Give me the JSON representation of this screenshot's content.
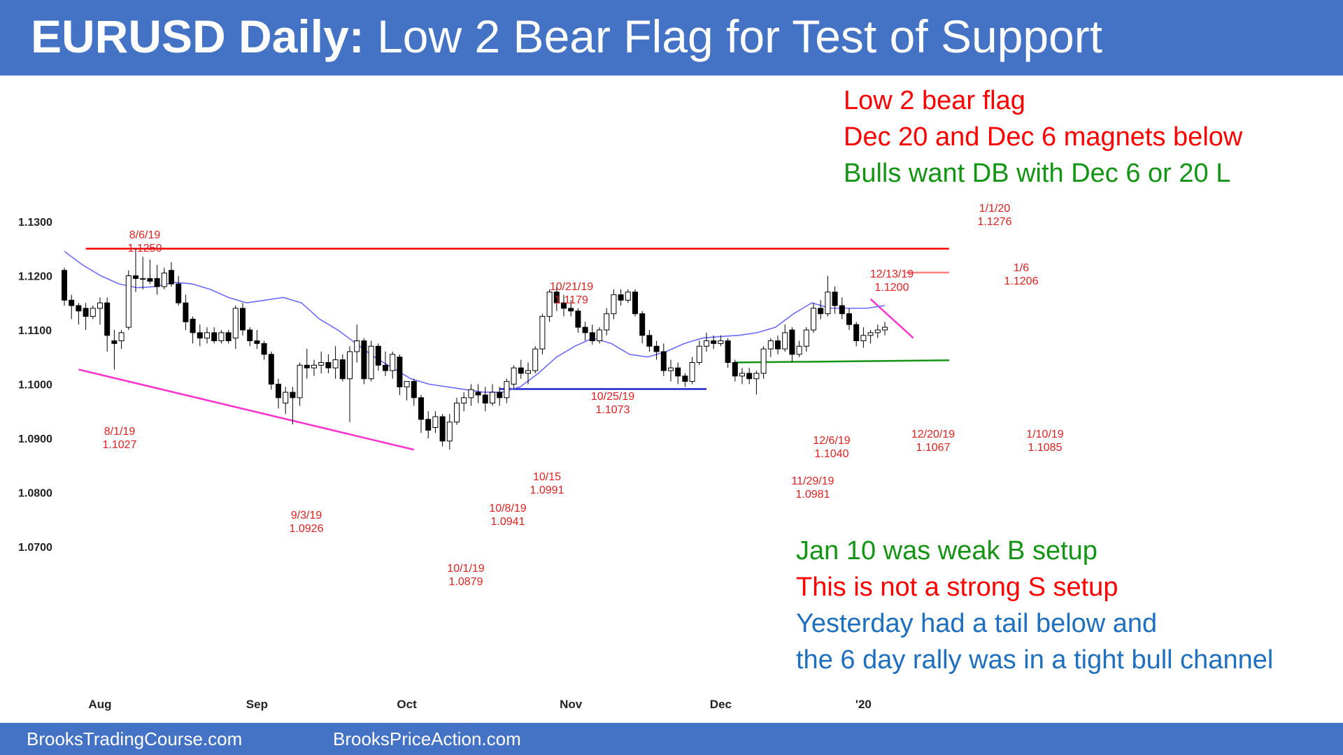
{
  "title": {
    "bold": "EURUSD Daily:",
    "rest": " Low 2 Bear Flag for Test of Support"
  },
  "footer": {
    "left": "BrooksTradingCourse.com",
    "right": "BrooksPriceAction.com"
  },
  "colors": {
    "header": "#4472c4",
    "red": "#ff0000",
    "green": "#149414",
    "blue": "#1f6fbf",
    "ema": "#6b6bff",
    "magenta": "#ff33cc",
    "hline": "#2020d0"
  },
  "notes_top": [
    {
      "text": "Low 2 bear flag",
      "color": "#ff0000"
    },
    {
      "text": "Dec 20 and Dec 6 magnets below",
      "color": "#ff0000"
    },
    {
      "text": "Bulls want DB with Dec 6 or 20 L",
      "color": "#149414"
    }
  ],
  "notes_bottom": [
    {
      "text": "Jan 10 was weak B setup",
      "color": "#149414"
    },
    {
      "text": "This is not a strong S setup",
      "color": "#ff0000"
    },
    {
      "text": "Yesterday had a tail below and",
      "color": "#1f6fbf"
    },
    {
      "text": "the 6 day rally was in a tight bull channel",
      "color": "#1f6fbf"
    }
  ],
  "chart_data": {
    "type": "candlestick",
    "ylim": [
      1.07,
      1.13
    ],
    "yticks": [
      "1.1300",
      "1.1200",
      "1.1100",
      "1.1000",
      "1.0900",
      "1.0800",
      "1.0700"
    ],
    "xticks": [
      {
        "label": "Aug",
        "bar": 5
      },
      {
        "label": "Sep",
        "bar": 27
      },
      {
        "label": "Oct",
        "bar": 48
      },
      {
        "label": "Nov",
        "bar": 71
      },
      {
        "label": "Dec",
        "bar": 92
      },
      {
        "label": "'20",
        "bar": 112
      }
    ],
    "annotations": [
      {
        "date": "8/6/19",
        "price": "1.1250"
      },
      {
        "date": "8/1/19",
        "price": "1.1027"
      },
      {
        "date": "9/3/19",
        "price": "1.0926"
      },
      {
        "date": "10/1/19",
        "price": "1.0879"
      },
      {
        "date": "10/8/19",
        "price": "1.0941"
      },
      {
        "date": "10/15",
        "price": "1.0991"
      },
      {
        "date": "10/21/19",
        "price": "1.1179"
      },
      {
        "date": "10/25/19",
        "price": "1.1073"
      },
      {
        "date": "11/29/19",
        "price": "1.0981"
      },
      {
        "date": "12/6/19",
        "price": "1.1040"
      },
      {
        "date": "12/13/19",
        "price": "1.1200"
      },
      {
        "date": "12/20/19",
        "price": "1.1067"
      },
      {
        "date": "1/1/20",
        "price": "1.1276"
      },
      {
        "date": "1/6",
        "price": "1.1206"
      },
      {
        "date": "1/10/19",
        "price": "1.1085"
      }
    ],
    "lines": [
      {
        "name": "resistance",
        "color": "#ff0000",
        "from": [
          3,
          1.125
        ],
        "to": [
          124,
          1.125
        ]
      },
      {
        "name": "jan6-high",
        "color": "#ff8080",
        "from": [
          118,
          1.1206
        ],
        "to": [
          124,
          1.1206
        ]
      },
      {
        "name": "dec6-20-support",
        "color": "#149414",
        "from": [
          94,
          1.104
        ],
        "to": [
          124,
          1.1044
        ]
      },
      {
        "name": "trading-range-low",
        "color": "#2020d0",
        "from": [
          61,
          1.0991
        ],
        "to": [
          90,
          1.0991
        ]
      },
      {
        "name": "bear-channel",
        "color": "#ff33cc",
        "from": [
          2,
          1.1027
        ],
        "to": [
          49,
          1.0879
        ]
      },
      {
        "name": "bear-micro-channel",
        "color": "#ff33cc",
        "from": [
          113,
          1.1157
        ],
        "to": [
          119,
          1.1085
        ]
      }
    ],
    "ohlc": [
      [
        1.121,
        1.1215,
        1.1145,
        1.1155
      ],
      [
        1.1155,
        1.1165,
        1.112,
        1.1145
      ],
      [
        1.1145,
        1.115,
        1.111,
        1.1135
      ],
      [
        1.114,
        1.115,
        1.11,
        1.1125
      ],
      [
        1.1125,
        1.1145,
        1.112,
        1.114
      ],
      [
        1.114,
        1.116,
        1.111,
        1.115
      ],
      [
        1.115,
        1.116,
        1.106,
        1.109
      ],
      [
        1.108,
        1.11,
        1.1027,
        1.1075
      ],
      [
        1.108,
        1.11,
        1.1065,
        1.1095
      ],
      [
        1.1105,
        1.121,
        1.11,
        1.12
      ],
      [
        1.12,
        1.125,
        1.117,
        1.1195
      ],
      [
        1.1195,
        1.1235,
        1.1175,
        1.1195
      ],
      [
        1.1195,
        1.123,
        1.1185,
        1.119
      ],
      [
        1.1195,
        1.122,
        1.1165,
        1.118
      ],
      [
        1.118,
        1.1215,
        1.1175,
        1.1205
      ],
      [
        1.121,
        1.1225,
        1.118,
        1.1185
      ],
      [
        1.1185,
        1.12,
        1.1145,
        1.115
      ],
      [
        1.115,
        1.1165,
        1.11,
        1.1115
      ],
      [
        1.112,
        1.1125,
        1.1075,
        1.1095
      ],
      [
        1.1095,
        1.111,
        1.107,
        1.1085
      ],
      [
        1.1085,
        1.1105,
        1.1075,
        1.1095
      ],
      [
        1.1095,
        1.1105,
        1.1075,
        1.108
      ],
      [
        1.108,
        1.11,
        1.1075,
        1.1095
      ],
      [
        1.1095,
        1.11,
        1.1075,
        1.108
      ],
      [
        1.1085,
        1.1145,
        1.1065,
        1.114
      ],
      [
        1.114,
        1.115,
        1.109,
        1.11
      ],
      [
        1.11,
        1.1105,
        1.107,
        1.108
      ],
      [
        1.108,
        1.11,
        1.1065,
        1.1075
      ],
      [
        1.1075,
        1.108,
        1.1045,
        1.1055
      ],
      [
        1.1055,
        1.106,
        1.099,
        1.1
      ],
      [
        1.1,
        1.101,
        1.0955,
        1.0975
      ],
      [
        1.0965,
        1.0995,
        1.0945,
        1.0985
      ],
      [
        1.0985,
        1.0995,
        1.0926,
        1.0975
      ],
      [
        1.0975,
        1.104,
        1.096,
        1.1035
      ],
      [
        1.1035,
        1.1065,
        1.101,
        1.103
      ],
      [
        1.103,
        1.1045,
        1.1015,
        1.1035
      ],
      [
        1.1035,
        1.106,
        1.102,
        1.104
      ],
      [
        1.104,
        1.1055,
        1.102,
        1.103
      ],
      [
        1.103,
        1.107,
        1.101,
        1.1045
      ],
      [
        1.1045,
        1.1055,
        1.1005,
        1.101
      ],
      [
        1.101,
        1.107,
        1.093,
        1.106
      ],
      [
        1.106,
        1.111,
        1.104,
        1.108
      ],
      [
        1.108,
        1.1085,
        1.1,
        1.101
      ],
      [
        1.101,
        1.108,
        1.1005,
        1.107
      ],
      [
        1.107,
        1.1075,
        1.1025,
        1.1035
      ],
      [
        1.1035,
        1.106,
        1.1015,
        1.1025
      ],
      [
        1.1025,
        1.106,
        1.101,
        1.1055
      ],
      [
        1.105,
        1.1055,
        1.098,
        1.0995
      ],
      [
        1.0995,
        1.1005,
        1.097,
        1.1005
      ],
      [
        1.1005,
        1.101,
        1.096,
        1.0975
      ],
      [
        1.0975,
        1.098,
        1.091,
        1.0935
      ],
      [
        1.0935,
        1.095,
        1.09,
        1.0915
      ],
      [
        1.092,
        1.095,
        1.091,
        1.094
      ],
      [
        1.094,
        1.0945,
        1.0885,
        1.0895
      ],
      [
        1.0895,
        1.0945,
        1.0879,
        1.093
      ],
      [
        1.093,
        1.0975,
        1.0925,
        1.0965
      ],
      [
        1.0965,
        1.0985,
        1.095,
        1.0975
      ],
      [
        1.0975,
        1.1,
        1.096,
        1.099
      ],
      [
        1.0985,
        1.1,
        1.0965,
        1.098
      ],
      [
        1.098,
        1.0995,
        1.095,
        1.0965
      ],
      [
        1.0965,
        1.1,
        1.096,
        1.0985
      ],
      [
        1.0985,
        1.0995,
        1.096,
        1.0975
      ],
      [
        1.0975,
        1.101,
        1.0965,
        1.1005
      ],
      [
        1.1,
        1.1035,
        1.0991,
        1.103
      ],
      [
        1.103,
        1.1045,
        1.101,
        1.102
      ],
      [
        1.102,
        1.104,
        1.1,
        1.1025
      ],
      [
        1.1025,
        1.107,
        1.102,
        1.1065
      ],
      [
        1.1065,
        1.113,
        1.1055,
        1.1125
      ],
      [
        1.1125,
        1.1175,
        1.1115,
        1.117
      ],
      [
        1.117,
        1.1179,
        1.1135,
        1.115
      ],
      [
        1.115,
        1.1165,
        1.1125,
        1.114
      ],
      [
        1.114,
        1.1155,
        1.1125,
        1.1135
      ],
      [
        1.1135,
        1.114,
        1.1095,
        1.1105
      ],
      [
        1.1105,
        1.1115,
        1.108,
        1.1095
      ],
      [
        1.1095,
        1.111,
        1.1073,
        1.108
      ],
      [
        1.108,
        1.1105,
        1.1075,
        1.11
      ],
      [
        1.11,
        1.114,
        1.109,
        1.113
      ],
      [
        1.113,
        1.1175,
        1.112,
        1.1165
      ],
      [
        1.1165,
        1.1175,
        1.1145,
        1.1155
      ],
      [
        1.1155,
        1.1175,
        1.115,
        1.117
      ],
      [
        1.117,
        1.1175,
        1.1125,
        1.113
      ],
      [
        1.113,
        1.1135,
        1.1075,
        1.109
      ],
      [
        1.109,
        1.11,
        1.106,
        1.107
      ],
      [
        1.107,
        1.108,
        1.1045,
        1.106
      ],
      [
        1.106,
        1.1075,
        1.1015,
        1.1025
      ],
      [
        1.1025,
        1.1045,
        1.1005,
        1.103
      ],
      [
        1.103,
        1.104,
        1.1,
        1.1015
      ],
      [
        1.1015,
        1.102,
        1.0995,
        1.1005
      ],
      [
        1.1005,
        1.105,
        1.1,
        1.104
      ],
      [
        1.104,
        1.108,
        1.1035,
        1.107
      ],
      [
        1.107,
        1.1095,
        1.106,
        1.108
      ],
      [
        1.108,
        1.109,
        1.1065,
        1.1075
      ],
      [
        1.1075,
        1.109,
        1.107,
        1.108
      ],
      [
        1.108,
        1.1085,
        1.103,
        1.104
      ],
      [
        1.104,
        1.1045,
        1.1005,
        1.1015
      ],
      [
        1.1015,
        1.103,
        1.1,
        1.102
      ],
      [
        1.102,
        1.103,
        1.1,
        1.101
      ],
      [
        1.101,
        1.1025,
        1.0981,
        1.102
      ],
      [
        1.102,
        1.107,
        1.101,
        1.1065
      ],
      [
        1.1065,
        1.1085,
        1.105,
        1.108
      ],
      [
        1.108,
        1.109,
        1.1055,
        1.1065
      ],
      [
        1.1065,
        1.111,
        1.106,
        1.1095
      ],
      [
        1.11,
        1.1105,
        1.104,
        1.1055
      ],
      [
        1.1055,
        1.108,
        1.105,
        1.107
      ],
      [
        1.107,
        1.1105,
        1.106,
        1.11
      ],
      [
        1.11,
        1.115,
        1.1095,
        1.114
      ],
      [
        1.114,
        1.1155,
        1.112,
        1.113
      ],
      [
        1.113,
        1.12,
        1.1125,
        1.117
      ],
      [
        1.117,
        1.118,
        1.113,
        1.1145
      ],
      [
        1.1145,
        1.116,
        1.112,
        1.113
      ],
      [
        1.113,
        1.114,
        1.11,
        1.111
      ],
      [
        1.111,
        1.1115,
        1.107,
        1.108
      ],
      [
        1.108,
        1.1105,
        1.1067,
        1.109
      ],
      [
        1.109,
        1.11,
        1.1075,
        1.1095
      ],
      [
        1.1095,
        1.111,
        1.1085,
        1.11
      ],
      [
        1.11,
        1.1115,
        1.109,
        1.1105
      ]
    ],
    "ema": [
      1.1245,
      1.122,
      1.12,
      1.1185,
      1.1178,
      1.118,
      1.1188,
      1.1185,
      1.1175,
      1.116,
      1.115,
      1.1155,
      1.116,
      1.115,
      1.112,
      1.11,
      1.1075,
      1.105,
      1.103,
      1.101,
      1.1,
      1.0995,
      1.099,
      1.0985,
      1.0985,
      1.0995,
      1.102,
      1.105,
      1.107,
      1.1085,
      1.1075,
      1.1055,
      1.105,
      1.106,
      1.1075,
      1.1085,
      1.1088,
      1.109,
      1.1095,
      1.1105,
      1.113,
      1.115,
      1.114,
      1.114,
      1.114,
      1.1145
    ]
  }
}
